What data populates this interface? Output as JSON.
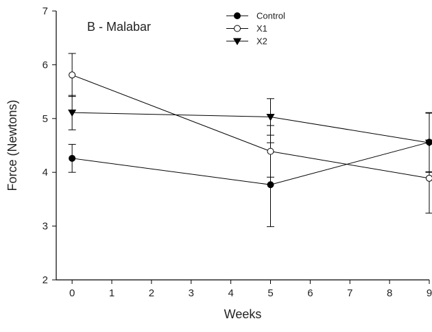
{
  "chart_data": {
    "type": "line",
    "title": "B - Malabar",
    "xlabel": "Weeks",
    "ylabel": "Force (Newtons)",
    "xlim": [
      -0.4,
      9
    ],
    "ylim": [
      2,
      7
    ],
    "xticks": [
      0,
      1,
      2,
      3,
      4,
      5,
      6,
      7,
      8,
      9
    ],
    "yticks": [
      2,
      3,
      4,
      5,
      6,
      7
    ],
    "legend_position": "top-center",
    "grid": false,
    "series": [
      {
        "name": "Control",
        "marker": "filled-circle",
        "x": [
          0,
          5,
          9
        ],
        "y": [
          4.26,
          3.77,
          4.56
        ],
        "err": [
          0.26,
          0.78,
          0.55
        ]
      },
      {
        "name": "X1",
        "marker": "open-circle",
        "x": [
          0,
          5,
          9
        ],
        "y": [
          5.81,
          4.39,
          3.89
        ],
        "err": [
          0.4,
          0.48,
          0.65
        ]
      },
      {
        "name": "X2",
        "marker": "filled-triangle-down",
        "x": [
          0,
          5,
          9
        ],
        "y": [
          5.11,
          5.03,
          4.55
        ],
        "err": [
          0.32,
          0.34,
          0.55
        ]
      }
    ]
  }
}
